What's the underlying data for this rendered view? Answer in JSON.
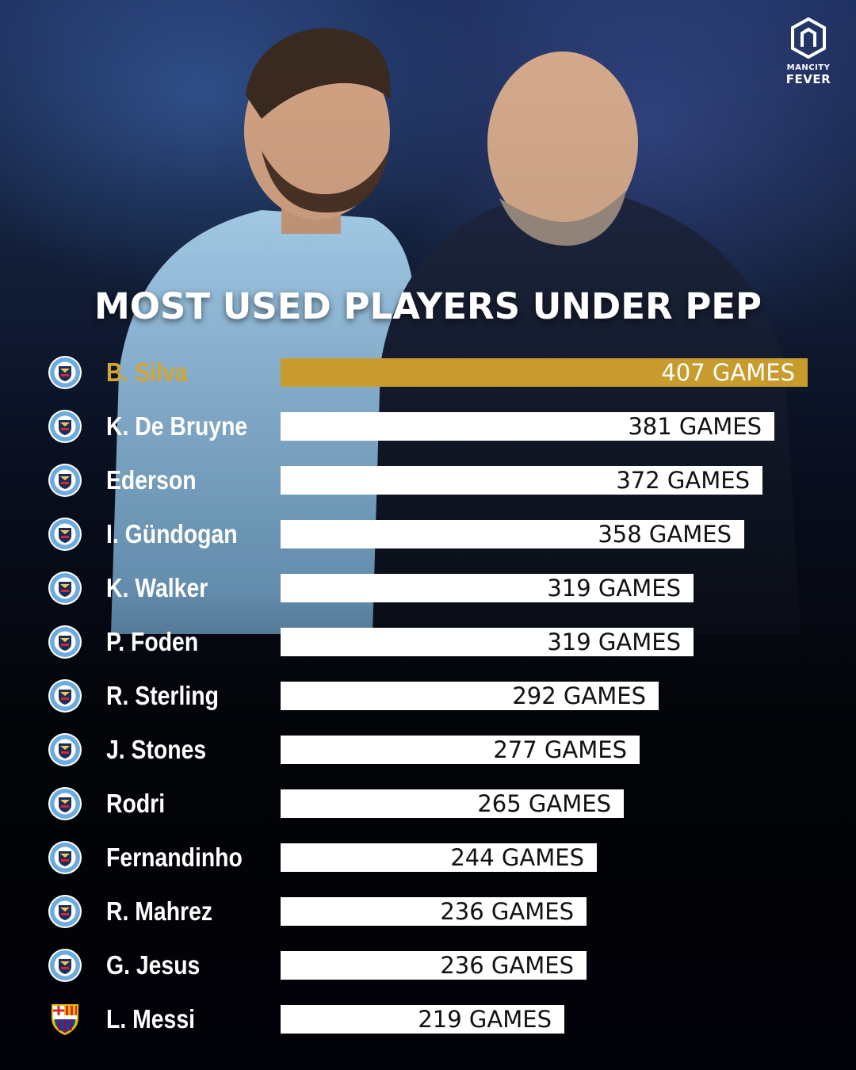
{
  "brand": {
    "line1": "MANCITY",
    "line2": "FEVER"
  },
  "chart_data": {
    "type": "bar",
    "orientation": "horizontal",
    "title": "MOST USED PLAYERS UNDER PEP",
    "xlim": [
      0,
      407
    ],
    "value_suffix": "GAMES",
    "highlight_color": "#c89b2e",
    "bar_color": "#ffffff",
    "categories": [
      "B. Silva",
      "K. De Bruyne",
      "Ederson",
      "I. Gündogan",
      "K. Walker",
      "P. Foden",
      "R. Sterling",
      "J. Stones",
      "Rodri",
      "Fernandinho",
      "R. Mahrez",
      "G. Jesus",
      "L. Messi"
    ],
    "values": [
      407,
      381,
      372,
      358,
      319,
      319,
      292,
      277,
      265,
      244,
      236,
      236,
      219
    ],
    "labels": [
      "407 GAMES",
      "381 GAMES",
      "372 GAMES",
      "358 GAMES",
      "319 GAMES",
      "319 GAMES",
      "292 GAMES",
      "277 GAMES",
      "265 GAMES",
      "244 GAMES",
      "236 GAMES",
      "236 GAMES",
      "219 GAMES"
    ],
    "badges": [
      "man-city-crest-icon",
      "man-city-crest-icon",
      "man-city-crest-icon",
      "man-city-crest-icon",
      "man-city-crest-icon",
      "man-city-crest-icon",
      "man-city-crest-icon",
      "man-city-crest-icon",
      "man-city-crest-icon",
      "man-city-crest-icon",
      "man-city-crest-icon",
      "man-city-crest-icon",
      "barcelona-crest-icon"
    ]
  }
}
